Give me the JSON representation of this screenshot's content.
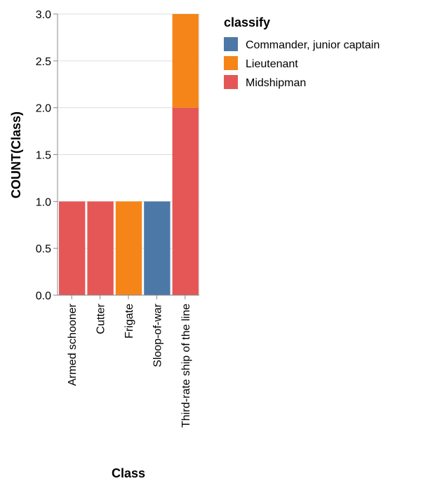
{
  "chart_data": {
    "type": "bar",
    "stacked": true,
    "title": "",
    "xlabel": "Class",
    "ylabel": "COUNT(Class)",
    "ylim": [
      0,
      3
    ],
    "yticks": [
      "0.0",
      "0.5",
      "1.0",
      "1.5",
      "2.0",
      "2.5",
      "3.0"
    ],
    "grid": true,
    "categories": [
      "Armed schooner",
      "Cutter",
      "Frigate",
      "Sloop-of-war",
      "Third-rate ship of the line"
    ],
    "series": [
      {
        "name": "Commander, junior captain",
        "color": "#4c78a8",
        "values": [
          0,
          0,
          0,
          1,
          0
        ]
      },
      {
        "name": "Lieutenant",
        "color": "#f58518",
        "values": [
          0,
          0,
          1,
          0,
          1
        ]
      },
      {
        "name": "Midshipman",
        "color": "#e45756",
        "values": [
          1,
          1,
          0,
          0,
          2
        ]
      }
    ],
    "stack_order": [
      "Midshipman",
      "Lieutenant",
      "Commander, junior captain"
    ],
    "legend": {
      "title": "classify",
      "placement": "right"
    }
  }
}
